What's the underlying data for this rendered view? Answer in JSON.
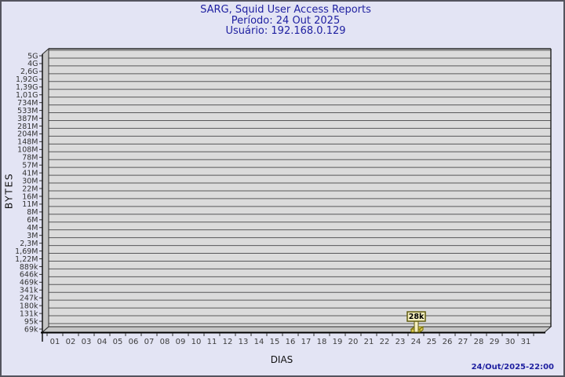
{
  "header": {
    "title": "SARG, Squid User Access Reports",
    "period": "Período: 24 Out 2025",
    "user": "Usuário: 192.168.0.129"
  },
  "footer": {
    "timestamp": "24/Out/2025-22:00"
  },
  "chart_data": {
    "type": "bar",
    "title": "SARG, Squid User Access Reports",
    "subtitle": "Período: 24 Out 2025",
    "user_line": "Usuário: 192.168.0.129",
    "xlabel": "DIAS",
    "ylabel": "BYTES",
    "x_ticks": [
      "01",
      "02",
      "03",
      "04",
      "05",
      "06",
      "07",
      "08",
      "09",
      "10",
      "11",
      "12",
      "13",
      "14",
      "15",
      "16",
      "17",
      "18",
      "19",
      "20",
      "21",
      "22",
      "23",
      "24",
      "25",
      "26",
      "27",
      "28",
      "29",
      "30",
      "31"
    ],
    "y_ticks": [
      "5G",
      "4G",
      "2,6G",
      "1,92G",
      "1,39G",
      "1,01G",
      "734M",
      "533M",
      "387M",
      "281M",
      "204M",
      "148M",
      "108M",
      "78M",
      "57M",
      "41M",
      "30M",
      "22M",
      "16M",
      "11M",
      "8M",
      "6M",
      "4M",
      "3M",
      "2,3M",
      "1,69M",
      "1,22M",
      "889k",
      "646k",
      "469k",
      "341k",
      "247k",
      "180k",
      "131k",
      "95k",
      "69k"
    ],
    "y_scale": "log",
    "y_range_labels": [
      "69k",
      "5G"
    ],
    "grid": "horizontal-only",
    "bars": [
      {
        "day": "24",
        "label": "28k",
        "value_bytes": 28000
      }
    ],
    "colors": {
      "background": "#e3e4f4",
      "title_text": "#1e1fa0",
      "wall_fill": "#dbdbdb",
      "side_fill": "#c5c5c5",
      "grid_line": "#58585a",
      "dark_edge": "#2b2b2b",
      "axis_text": "#3c3c3c",
      "bar_fill": "#dfcc55",
      "bar_border": "#6e6900",
      "flag_fill": "#f6f0bf",
      "flag_border": "#615c10",
      "flag_text": "#000000"
    }
  }
}
